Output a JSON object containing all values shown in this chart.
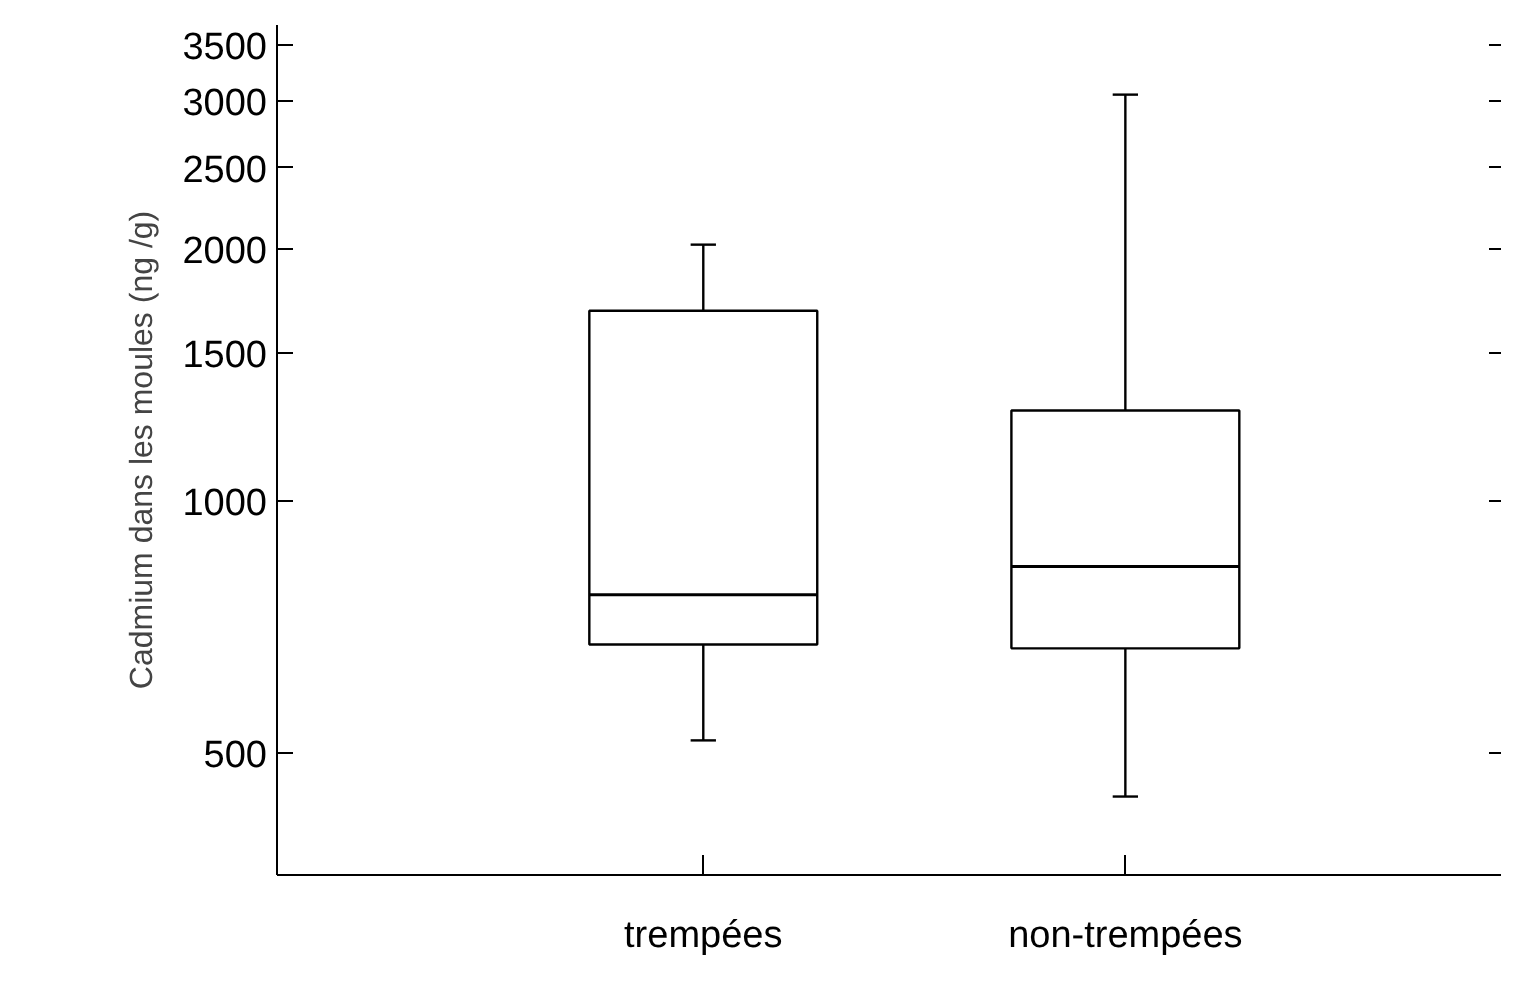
{
  "chart_data": {
    "type": "box",
    "ylabel": "Cadmium dans les moules (ng /g)",
    "categories": [
      "trempées",
      "non-trempées"
    ],
    "boxes": [
      {
        "low": 517,
        "q1": 673,
        "median": 772,
        "q3": 1686,
        "high": 2022
      },
      {
        "low": 443,
        "q1": 666,
        "median": 834,
        "q3": 1281,
        "high": 3055
      }
    ],
    "log": true,
    "ylim": [
      357,
      3700
    ],
    "yticks": [
      500,
      1000,
      1500,
      2000,
      2500,
      3000,
      3500
    ],
    "grid": false
  }
}
